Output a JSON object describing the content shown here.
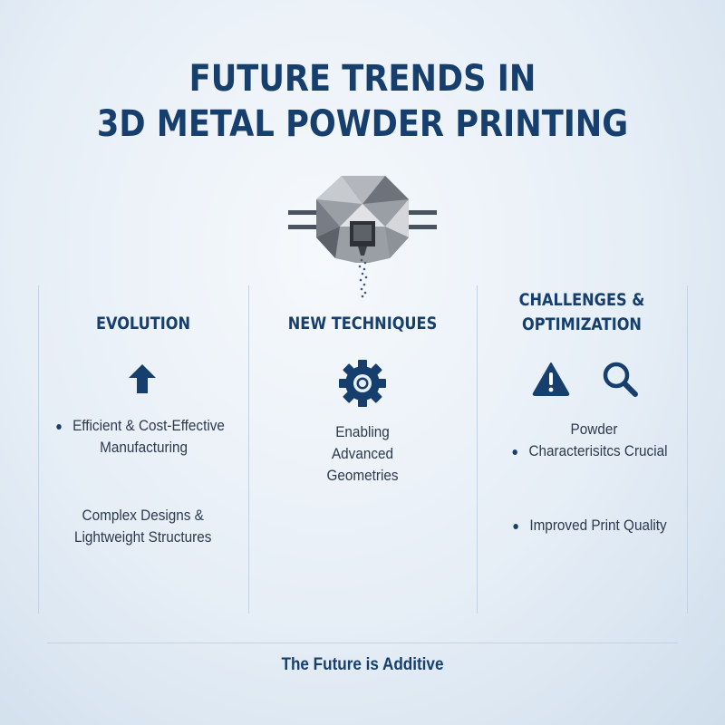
{
  "title": {
    "line1": "FUTURE TRENDS IN",
    "line2": "3D METAL POWDER PRINTING"
  },
  "columns": [
    {
      "heading": "EVOLUTION",
      "icon": "arrow-up-icon",
      "items": [
        "Efficient & Cost-Effective",
        "Manufacturing",
        "Complex Designs &",
        "Lightweight Structures"
      ]
    },
    {
      "heading": "NEW TECHNIQUES",
      "icon": "gear-icon",
      "items": [
        "Enabling",
        "Advanced",
        "Geometries"
      ]
    },
    {
      "heading_line1": "CHALLENGES &",
      "heading_line2": "OPTIMIZATION",
      "icons": [
        "warning-icon",
        "magnifier-icon"
      ],
      "items": [
        "Powder",
        "Characterisitcs Crucial",
        "Improved Print Quality"
      ]
    }
  ],
  "footer": "The Future is Additive",
  "colors": {
    "accent": "#173f6d",
    "text": "#2c3a4e"
  }
}
